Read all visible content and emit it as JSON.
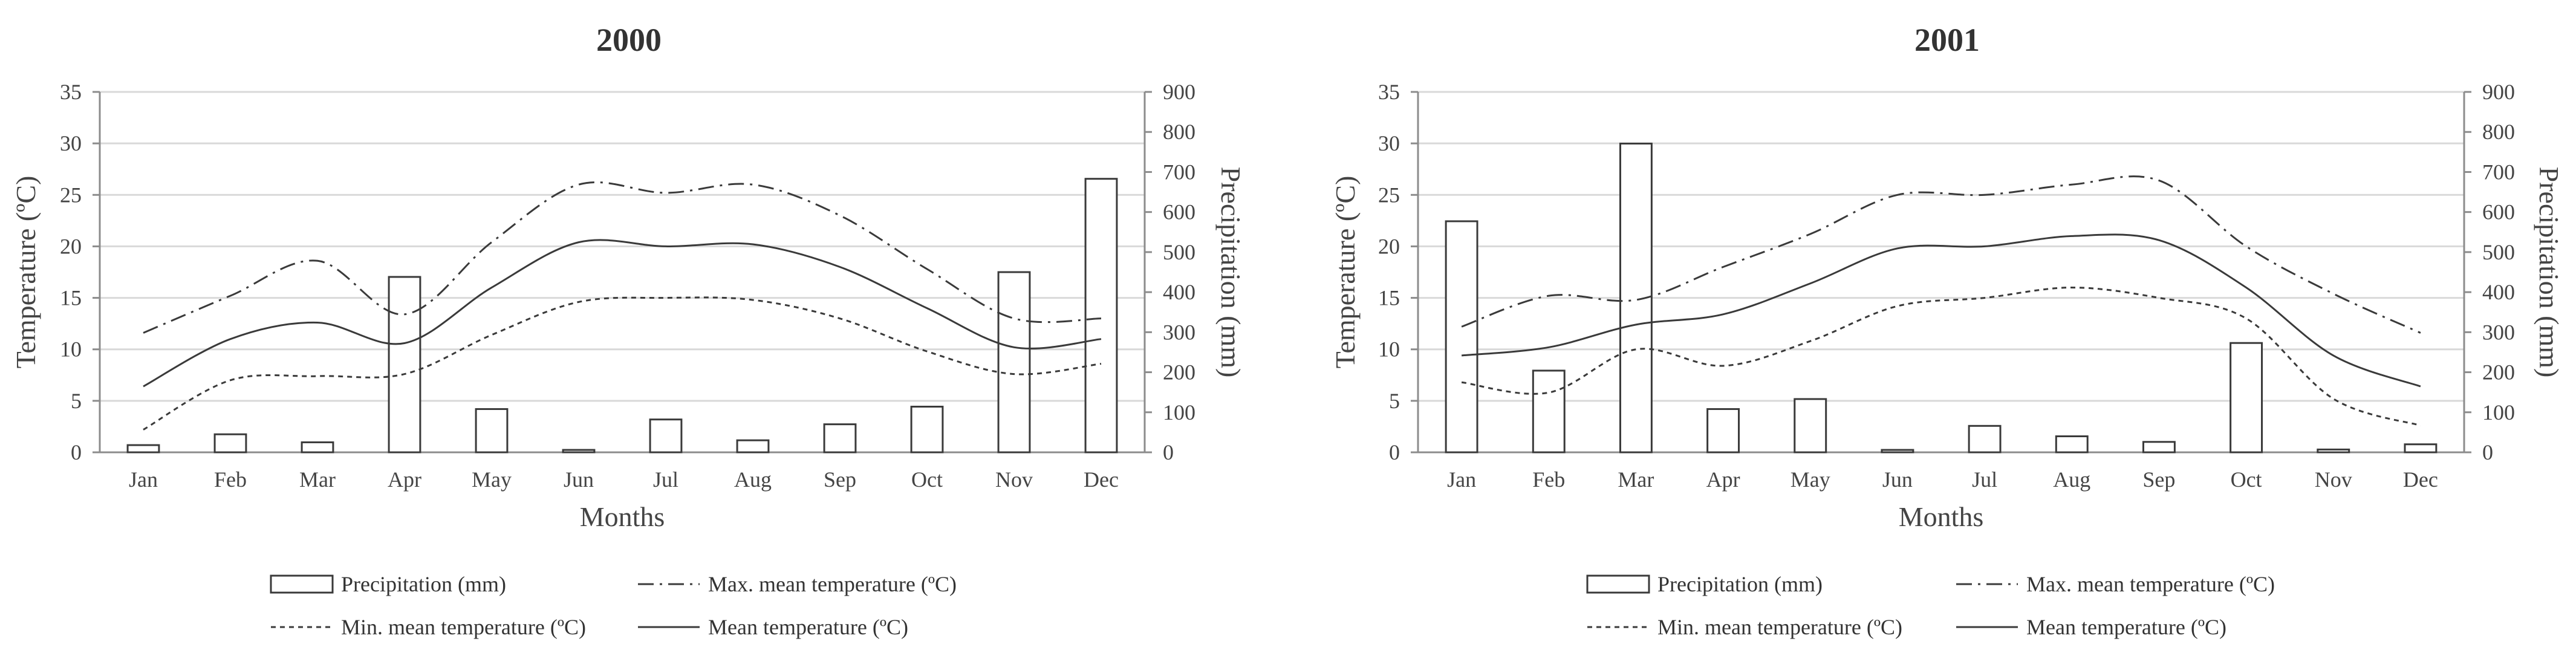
{
  "chart_data": [
    {
      "type": "bar+line",
      "title": "2000",
      "xlabel": "Months",
      "ylabel": "Temperature (ºC)",
      "y2label": "Precipitation (mm)",
      "ylim": [
        0,
        35
      ],
      "y2lim": [
        0,
        900
      ],
      "yticks": [
        "0",
        "5",
        "10",
        "15",
        "20",
        "25",
        "30",
        "35"
      ],
      "y2ticks": [
        "0",
        "100",
        "200",
        "300",
        "400",
        "500",
        "600",
        "700",
        "800",
        "900"
      ],
      "categories": [
        "Jan",
        "Feb",
        "Mar",
        "Apr",
        "May",
        "Jun",
        "Jul",
        "Aug",
        "Sep",
        "Oct",
        "Nov",
        "Dec"
      ],
      "grid": true,
      "legend_position": "bottom",
      "series": [
        {
          "name": "Precipitation (mm)",
          "type": "bar",
          "axis": "y2",
          "values": [
            18,
            45,
            25,
            438,
            108,
            6,
            82,
            30,
            70,
            114,
            450,
            683
          ]
        },
        {
          "name": "Max. mean temperature (ºC)",
          "type": "line",
          "style": "dashdot",
          "values": [
            11.6,
            15.2,
            18.6,
            13.4,
            20.4,
            26.0,
            25.2,
            26.0,
            23.0,
            17.8,
            13.0,
            13.0
          ]
        },
        {
          "name": "Min. mean temperature (ºC)",
          "type": "line",
          "style": "dotted",
          "values": [
            2.2,
            7.0,
            7.4,
            7.6,
            11.4,
            14.6,
            15.0,
            14.8,
            13.0,
            9.8,
            7.6,
            8.6
          ]
        },
        {
          "name": "Mean temperature (ºC)",
          "type": "line",
          "style": "solid",
          "values": [
            6.4,
            11.0,
            12.6,
            10.6,
            16.0,
            20.4,
            20.0,
            20.2,
            18.0,
            14.0,
            10.2,
            11.0
          ]
        }
      ]
    },
    {
      "type": "bar+line",
      "title": "2001",
      "xlabel": "Months",
      "ylabel": "Temperature (ºC)",
      "y2label": "Precipitation (mm)",
      "ylim": [
        0,
        35
      ],
      "y2lim": [
        0,
        900
      ],
      "yticks": [
        "0",
        "5",
        "10",
        "15",
        "20",
        "25",
        "30",
        "35"
      ],
      "y2ticks": [
        "0",
        "100",
        "200",
        "300",
        "400",
        "500",
        "600",
        "700",
        "800",
        "900"
      ],
      "categories": [
        "Jan",
        "Feb",
        "Mar",
        "Apr",
        "May",
        "Jun",
        "Jul",
        "Aug",
        "Sep",
        "Oct",
        "Nov",
        "Dec"
      ],
      "grid": true,
      "legend_position": "bottom",
      "series": [
        {
          "name": "Precipitation (mm)",
          "type": "bar",
          "axis": "y2",
          "values": [
            577,
            204,
            771,
            108,
            133,
            6,
            66,
            40,
            26,
            273,
            7,
            20
          ]
        },
        {
          "name": "Max. mean temperature (ºC)",
          "type": "line",
          "style": "dashdot",
          "values": [
            12.2,
            15.2,
            14.8,
            18.0,
            21.2,
            25.0,
            25.0,
            26.0,
            26.4,
            20.0,
            15.4,
            11.6
          ]
        },
        {
          "name": "Min. mean temperature (ºC)",
          "type": "line",
          "style": "dotted",
          "values": [
            6.8,
            5.8,
            10.0,
            8.4,
            10.8,
            14.2,
            15.0,
            16.0,
            15.0,
            13.0,
            5.2,
            2.6
          ]
        },
        {
          "name": "Mean temperature (ºC)",
          "type": "line",
          "style": "solid",
          "values": [
            9.4,
            10.2,
            12.4,
            13.4,
            16.4,
            19.8,
            20.0,
            21.0,
            20.6,
            16.0,
            9.4,
            6.4
          ]
        }
      ]
    }
  ]
}
